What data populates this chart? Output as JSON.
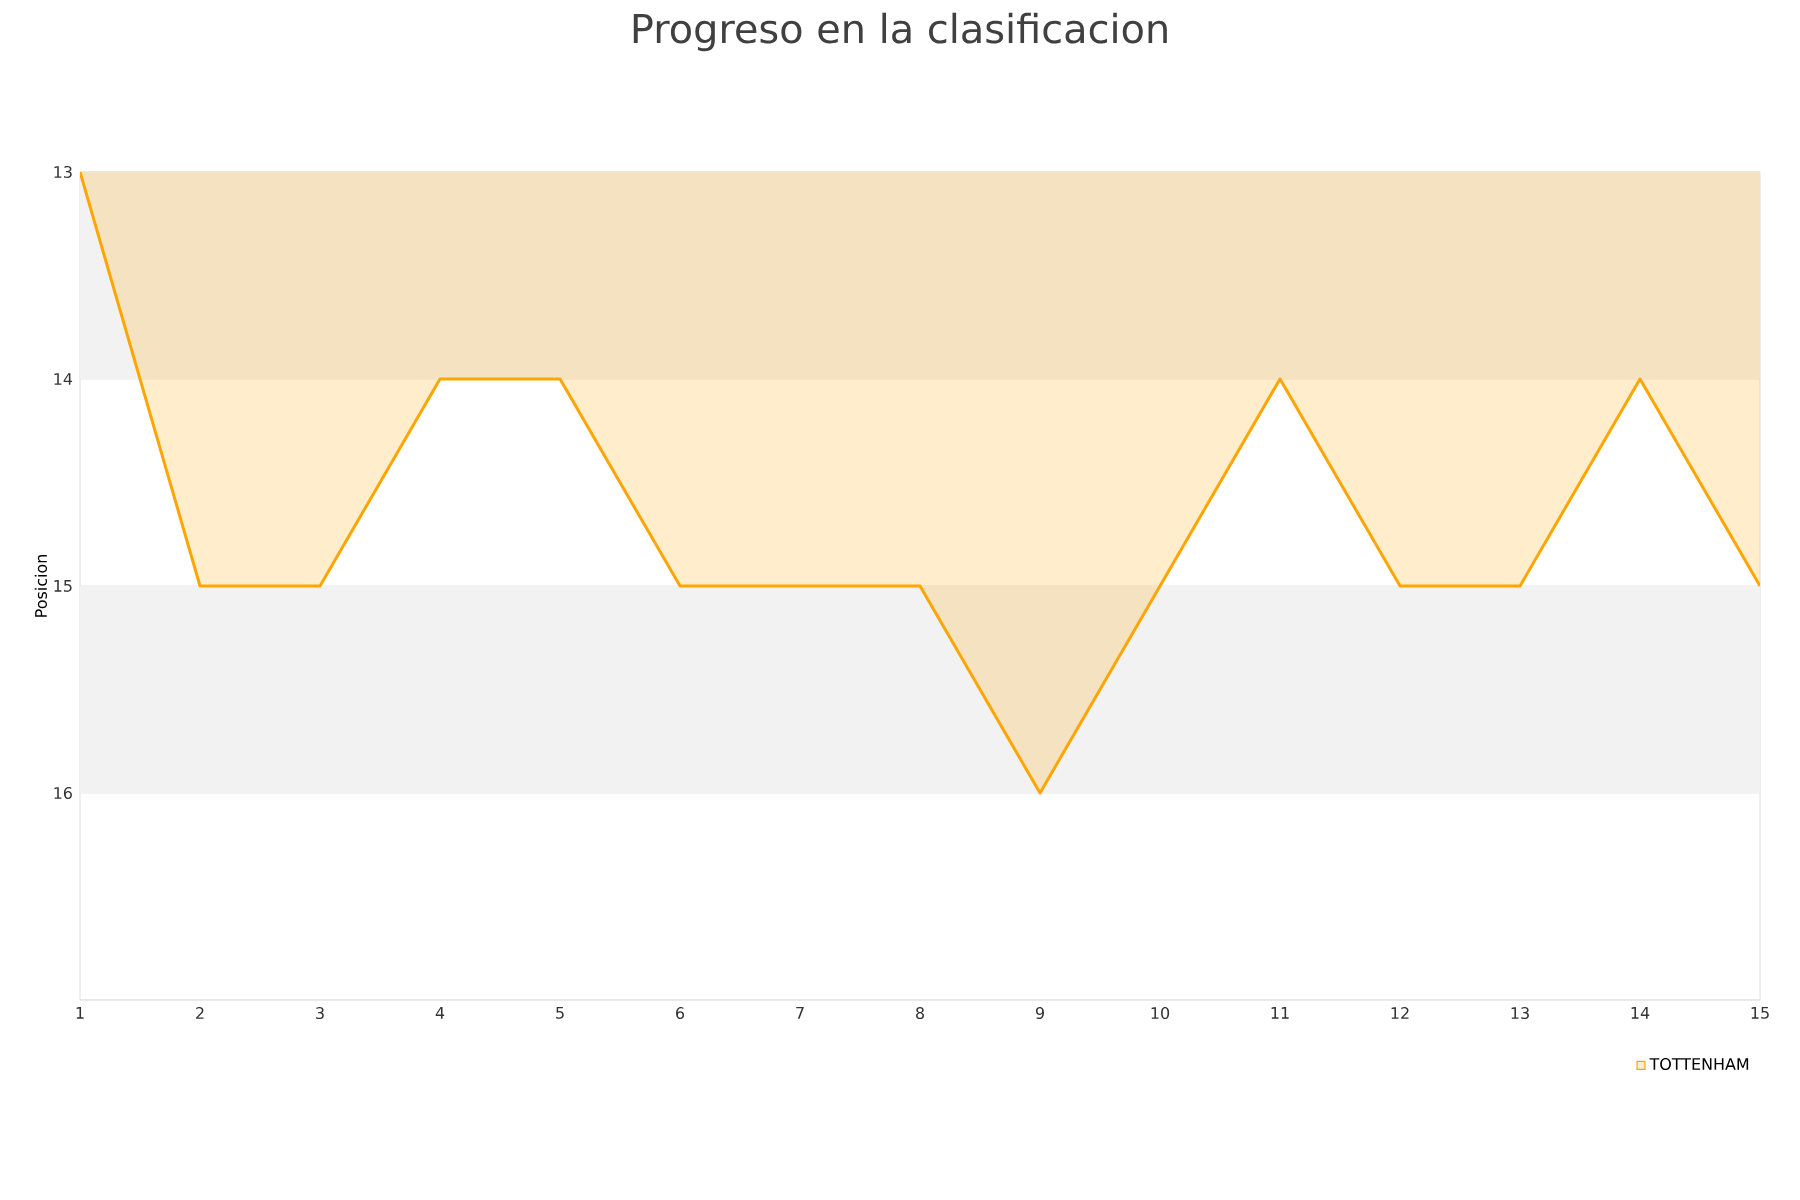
{
  "chart_data": {
    "type": "area",
    "title": "Progreso en la clasificacion",
    "ylabel": "Posicion",
    "x": [
      1,
      2,
      3,
      4,
      5,
      6,
      7,
      8,
      9,
      10,
      11,
      12,
      13,
      14,
      15
    ],
    "series": [
      {
        "name": "TOTTENHAM",
        "color": "#ffa500",
        "values": [
          13,
          15,
          15,
          14,
          14,
          15,
          15,
          15,
          16,
          15,
          14,
          15,
          15,
          14,
          15
        ]
      }
    ],
    "xlim": [
      1,
      15
    ],
    "xticks": [
      1,
      2,
      3,
      4,
      5,
      6,
      7,
      8,
      9,
      10,
      11,
      12,
      13,
      14,
      15
    ],
    "ylim": [
      17,
      13
    ],
    "yticks": [
      13,
      14,
      15,
      16,
      {
        "value": 17,
        "label": null
      }
    ],
    "bands": [
      {
        "axis": "y",
        "from": 13,
        "to": 14,
        "color": "#f2f2f2"
      },
      {
        "axis": "y",
        "from": 15,
        "to": 16,
        "color": "#f2f2f2"
      }
    ],
    "grid": "y",
    "legend": "bottom right"
  }
}
